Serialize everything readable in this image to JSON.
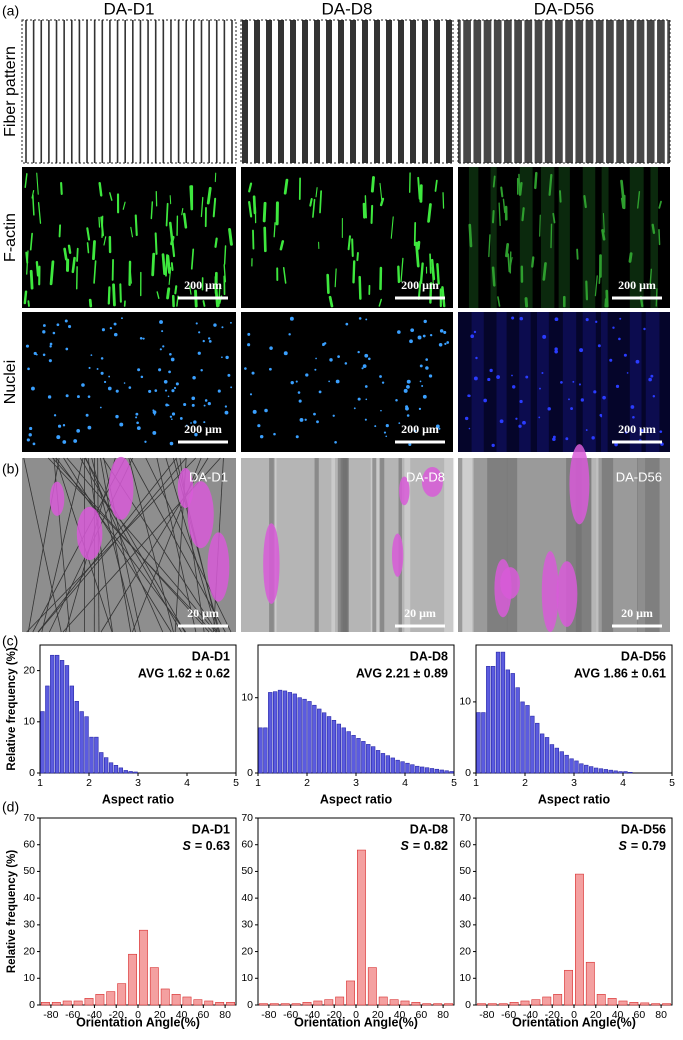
{
  "panel_labels": [
    "(a)",
    "(b)",
    "(c)",
    "(d)"
  ],
  "columns": [
    "DA-D1",
    "DA-D8",
    "DA-D56"
  ],
  "row_labels": [
    "Fiber pattern",
    "F-actin",
    "Nuclei"
  ],
  "fluorescence_scale_bar": "200 μm",
  "sem": {
    "labels": [
      "DA-D1",
      "DA-D8",
      "DA-D56"
    ],
    "scale_bar": "20 μm"
  },
  "chart_data": [
    {
      "type": "histogram",
      "title": "DA-D1",
      "subtitle": "AVG 1.62 ± 0.62",
      "x_label": "Aspect ratio",
      "y_label": "Relative frequency (%)",
      "color": "#5b5bdf",
      "bins": [
        1.0,
        1.1,
        1.2,
        1.3,
        1.4,
        1.5,
        1.6,
        1.7,
        1.8,
        1.9,
        2.0,
        2.1,
        2.2,
        2.3,
        2.4,
        2.5,
        2.6,
        2.7,
        2.8,
        2.9,
        3.0
      ],
      "values": [
        12,
        17,
        23,
        23,
        22,
        21,
        17,
        14,
        12,
        11,
        7,
        7,
        4,
        3,
        2,
        1.5,
        1,
        0.5,
        0.3,
        0.2
      ],
      "xlim": [
        1,
        5
      ],
      "xticks": [
        1,
        2,
        3,
        4,
        5
      ],
      "ylim": [
        0,
        25
      ],
      "yticks": [
        0,
        10,
        20
      ]
    },
    {
      "type": "histogram",
      "title": "DA-D8",
      "subtitle": "AVG 2.21 ± 0.89",
      "x_label": "Aspect ratio",
      "color": "#5b5bdf",
      "bins": [
        1.0,
        1.1,
        1.2,
        1.3,
        1.4,
        1.5,
        1.6,
        1.7,
        1.8,
        1.9,
        2.0,
        2.1,
        2.2,
        2.3,
        2.4,
        2.5,
        2.6,
        2.7,
        2.8,
        2.9,
        3.0,
        3.1,
        3.2,
        3.3,
        3.4,
        3.5,
        3.6,
        3.7,
        3.8,
        3.9,
        4.0,
        4.1,
        4.2,
        4.3,
        4.4,
        4.5,
        4.6,
        4.7,
        4.8,
        4.9,
        5.0
      ],
      "values": [
        6,
        6,
        10.7,
        10.8,
        11,
        10.9,
        10.7,
        10.5,
        10,
        9.8,
        9.5,
        9,
        8.5,
        8,
        7.5,
        7,
        6.5,
        6,
        5.5,
        5,
        4.6,
        4.2,
        3.8,
        3.5,
        3,
        2.6,
        2.3,
        2,
        1.7,
        1.5,
        1.3,
        1.1,
        0.9,
        0.8,
        0.7,
        0.6,
        0.5,
        0.4,
        0.3,
        0.2
      ],
      "xlim": [
        1,
        5
      ],
      "xticks": [
        1,
        2,
        3,
        4,
        5
      ],
      "ylim": [
        0,
        17
      ],
      "yticks": [
        0,
        10
      ]
    },
    {
      "type": "histogram",
      "title": "DA-D56",
      "subtitle": "AVG 1.86 ± 0.61",
      "x_label": "Aspect ratio",
      "color": "#5b5bdf",
      "bins": [
        1.0,
        1.1,
        1.2,
        1.3,
        1.4,
        1.5,
        1.6,
        1.7,
        1.8,
        1.9,
        2.0,
        2.1,
        2.2,
        2.3,
        2.4,
        2.5,
        2.6,
        2.7,
        2.8,
        2.9,
        3.0,
        3.1,
        3.2,
        3.3,
        3.4,
        3.5,
        3.6,
        3.7,
        3.8,
        3.9,
        4.0,
        4.1,
        4.2
      ],
      "values": [
        8.5,
        8.5,
        15,
        15,
        17,
        17,
        14.5,
        14,
        12,
        10,
        9.5,
        8,
        7,
        5.5,
        5,
        4,
        3.5,
        3,
        2.5,
        2,
        1.7,
        1.3,
        1.1,
        0.9,
        0.7,
        0.6,
        0.5,
        0.4,
        0.3,
        0.2,
        0.2,
        0.1
      ],
      "xlim": [
        1,
        5
      ],
      "xticks": [
        1,
        2,
        3,
        4,
        5
      ],
      "ylim": [
        0,
        18
      ],
      "yticks": [
        0,
        10
      ]
    },
    {
      "type": "histogram",
      "title": "DA-D1",
      "stat_symbol": "S",
      "stat_text": "= 0.63",
      "x_label": "Orientation Angle(%)",
      "y_label": "Relative frequency (%)",
      "color": "#f4a0a0",
      "bins": [
        -90,
        -80,
        -70,
        -60,
        -50,
        -40,
        -30,
        -20,
        -10,
        0,
        10,
        20,
        30,
        40,
        50,
        60,
        70,
        80,
        90
      ],
      "values": [
        1,
        1,
        1.5,
        1.5,
        2.5,
        4,
        5,
        8,
        19,
        28,
        14,
        6,
        4,
        3,
        2,
        1.5,
        1,
        1
      ],
      "xlim": [
        -90,
        90
      ],
      "xticks": [
        -80,
        -60,
        -40,
        -20,
        0,
        20,
        40,
        60,
        80
      ],
      "ylim": [
        0,
        70
      ],
      "yticks": [
        0,
        10,
        20,
        30,
        40,
        50,
        60,
        70
      ]
    },
    {
      "type": "histogram",
      "title": "DA-D8",
      "stat_symbol": "S",
      "stat_text": "= 0.82",
      "x_label": "Orientation Angle(%)",
      "color": "#f4a0a0",
      "bins": [
        -90,
        -80,
        -70,
        -60,
        -50,
        -40,
        -30,
        -20,
        -10,
        0,
        10,
        20,
        30,
        40,
        50,
        60,
        70,
        80,
        90
      ],
      "values": [
        0.5,
        0.5,
        0.5,
        0.5,
        1,
        1.5,
        2,
        3,
        9,
        58,
        14,
        3,
        2,
        1.5,
        1,
        0.5,
        0.5,
        0.5
      ],
      "xlim": [
        -90,
        90
      ],
      "xticks": [
        -80,
        -60,
        -40,
        -20,
        0,
        20,
        40,
        60,
        80
      ],
      "ylim": [
        0,
        70
      ],
      "yticks": [
        0,
        10,
        20,
        30,
        40,
        50,
        60,
        70
      ]
    },
    {
      "type": "histogram",
      "title": "DA-D56",
      "stat_symbol": "S",
      "stat_text": "= 0.79",
      "x_label": "Orientation Angle(%)",
      "color": "#f4a0a0",
      "bins": [
        -90,
        -80,
        -70,
        -60,
        -50,
        -40,
        -30,
        -20,
        -10,
        0,
        10,
        20,
        30,
        40,
        50,
        60,
        70,
        80,
        90
      ],
      "values": [
        0.5,
        0.5,
        0.5,
        1,
        1.5,
        2,
        3,
        4,
        13,
        49,
        16,
        4,
        2.5,
        1.5,
        1,
        0.8,
        0.5,
        0.5
      ],
      "xlim": [
        -90,
        90
      ],
      "xticks": [
        -80,
        -60,
        -40,
        -20,
        0,
        20,
        40,
        60,
        80
      ],
      "ylim": [
        0,
        70
      ],
      "yticks": [
        0,
        10,
        20,
        30,
        40,
        50,
        60,
        70
      ]
    }
  ]
}
